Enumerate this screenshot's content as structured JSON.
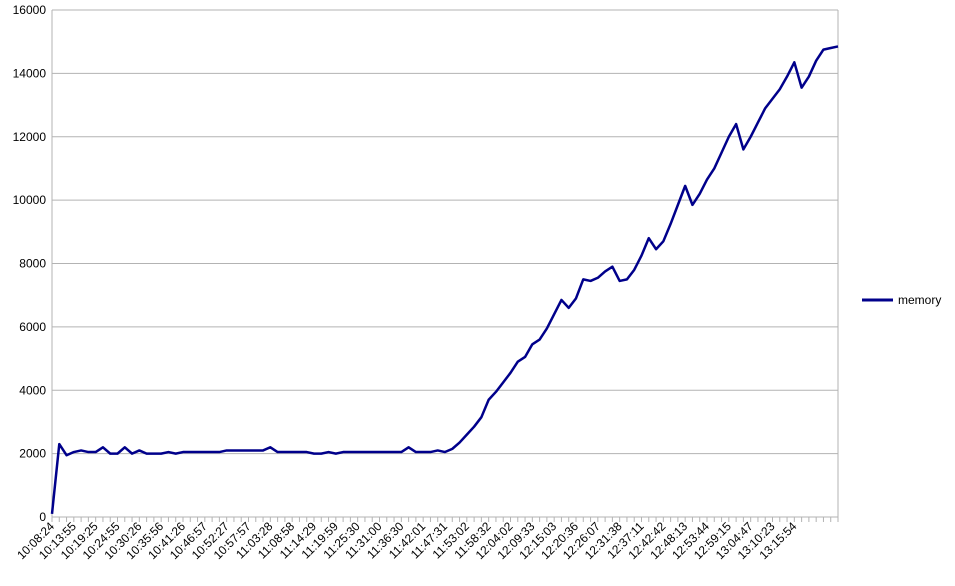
{
  "chart_data": {
    "type": "line",
    "categories": [
      "10:08:24",
      null,
      null,
      "10:13:55",
      null,
      null,
      "10:19:25",
      null,
      null,
      "10:24:55",
      null,
      null,
      "10:30:26",
      null,
      null,
      "10:35:56",
      null,
      null,
      "10:41:26",
      null,
      null,
      "10:46:57",
      null,
      null,
      "10:52:27",
      null,
      null,
      "10:57:57",
      null,
      null,
      "11:03:28",
      null,
      null,
      "11:08:58",
      null,
      null,
      "11:14:29",
      null,
      null,
      "11:19:59",
      null,
      null,
      "11:25:30",
      null,
      null,
      "11:31:00",
      null,
      null,
      "11:36:30",
      null,
      null,
      "11:42:01",
      null,
      null,
      "11:47:31",
      null,
      null,
      "11:53:02",
      null,
      null,
      "11:58:32",
      null,
      null,
      "12:04:02",
      null,
      null,
      "12:09:33",
      null,
      null,
      "12:15:03",
      null,
      null,
      "12:20:36",
      null,
      null,
      "12:26:07",
      null,
      null,
      "12:31:38",
      null,
      null,
      "12:37:11",
      null,
      null,
      "12:42:42",
      null,
      null,
      "12:48:13",
      null,
      null,
      "12:53:44",
      null,
      null,
      "12:59:15",
      null,
      null,
      "13:04:47",
      null,
      null,
      "13:10:23",
      null,
      null,
      "13:15:54",
      null,
      null,
      null,
      null,
      null,
      null
    ],
    "series": [
      {
        "name": "memory",
        "color": "#00008b",
        "values": [
          100,
          2300,
          1950,
          2050,
          2100,
          2050,
          2050,
          2200,
          2000,
          2000,
          2200,
          2000,
          2100,
          2000,
          2000,
          2000,
          2050,
          2000,
          2050,
          2050,
          2050,
          2050,
          2050,
          2050,
          2100,
          2100,
          2100,
          2100,
          2100,
          2100,
          2200,
          2050,
          2050,
          2050,
          2050,
          2050,
          2000,
          2000,
          2050,
          2000,
          2050,
          2050,
          2050,
          2050,
          2050,
          2050,
          2050,
          2050,
          2050,
          2200,
          2050,
          2050,
          2050,
          2100,
          2050,
          2150,
          2350,
          2600,
          2850,
          3150,
          3700,
          3950,
          4250,
          4550,
          4900,
          5050,
          5450,
          5600,
          5950,
          6400,
          6850,
          6600,
          6900,
          7500,
          7450,
          7550,
          7750,
          7900,
          7450,
          7500,
          7800,
          8250,
          8800,
          8450,
          8700,
          9250,
          9850,
          10450,
          9850,
          10200,
          10650,
          11000,
          11500,
          12000,
          12400,
          11600,
          12000,
          12450,
          12900,
          13200,
          13500,
          13900,
          14350,
          13550,
          13900,
          14400,
          14750,
          14800,
          14850
        ]
      }
    ],
    "ylim": [
      0,
      16000
    ],
    "yticks": [
      0,
      2000,
      4000,
      6000,
      8000,
      10000,
      12000,
      14000,
      16000
    ],
    "grid": true,
    "legend": "right"
  }
}
